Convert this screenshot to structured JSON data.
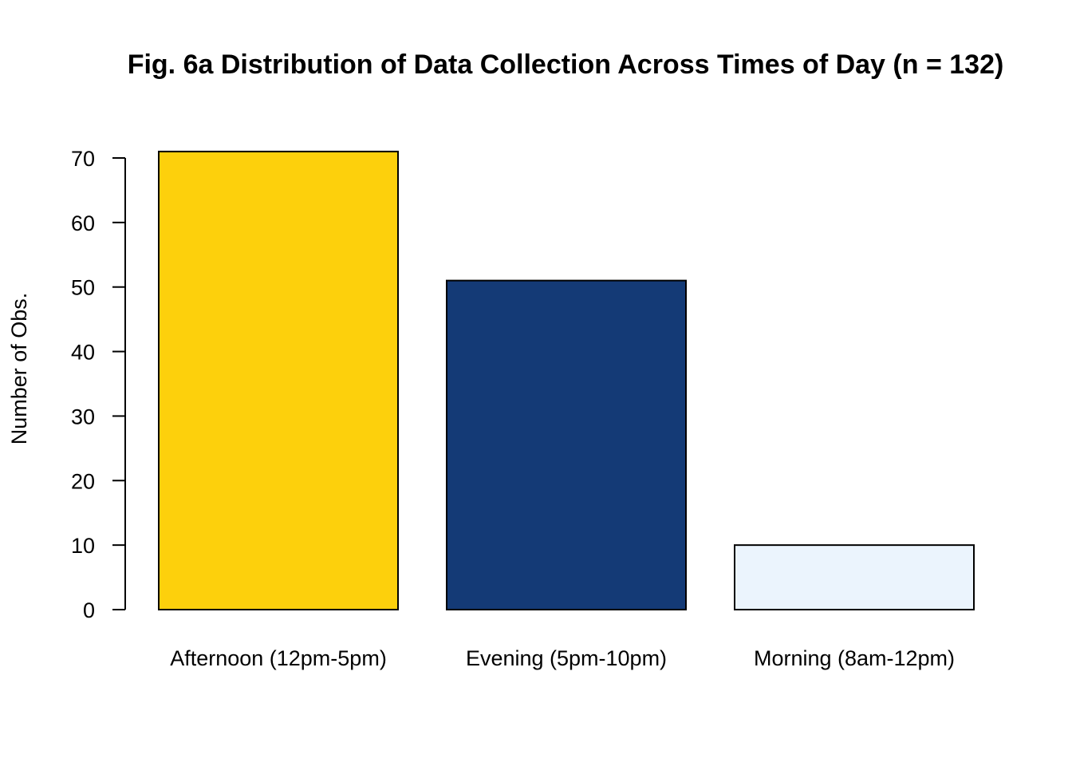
{
  "chart_data": {
    "type": "bar",
    "title": "Fig. 6a Distribution of Data Collection Across Times of Day (n = 132)",
    "xlabel": "",
    "ylabel": "Number of Obs.",
    "categories": [
      "Afternoon (12pm-5pm)",
      "Evening (5pm-10pm)",
      "Morning (8am-12pm)"
    ],
    "values": [
      71,
      51,
      10
    ],
    "colors": [
      "#FDD00C",
      "#143A76",
      "#EBF4FD"
    ],
    "bar_border_color": "#000000",
    "yticks": [
      0,
      10,
      20,
      30,
      40,
      50,
      60,
      70
    ],
    "ylim": [
      0,
      70
    ],
    "grid": false,
    "legend": "none"
  }
}
